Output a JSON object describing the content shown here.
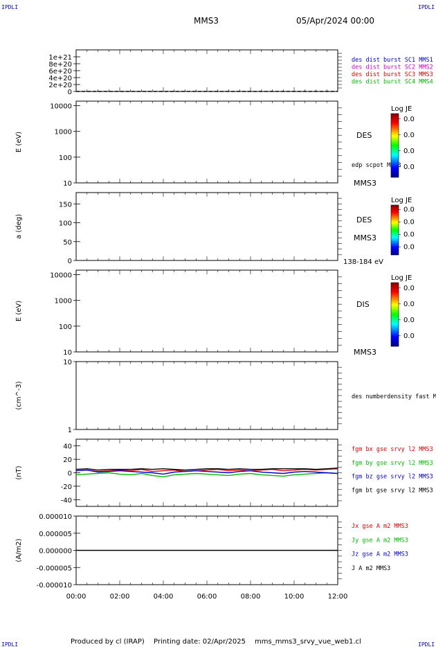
{
  "header": {
    "corner_tl": "IPDLI",
    "corner_tr": "IPDLI",
    "corner_bl": "IPDLI",
    "corner_br": "IPDLI",
    "spacecraft": "MMS3",
    "date": "05/Apr/2024 00:00"
  },
  "footer": {
    "produced_by": "Produced by cl (IRAP)",
    "printing_date": "Printing date: 02/Apr/2025",
    "filename": "mms_mms3_srvy_vue_web1.cl"
  },
  "colors": {
    "blue": "#0000cc",
    "magenta": "#cc00cc",
    "red": "#dd0000",
    "green": "#00bb00",
    "black": "#000000"
  },
  "chart_data": [
    {
      "type": "line",
      "ylabel": "",
      "ylim": [
        0,
        1.2e+21
      ],
      "yticks": [
        "0",
        "2e+20",
        "4e+20",
        "6e+20",
        "8e+20",
        "1e+21"
      ],
      "ytick_values": [
        0,
        2e+20,
        4e+20,
        6e+20,
        8e+20,
        1e+21
      ],
      "legend": [
        {
          "label": "des dist burst SC1 MMS1",
          "color": "#0000cc"
        },
        {
          "label": "des dist burst SC2 MMS2",
          "color": "#cc00cc"
        },
        {
          "label": "des dist burst SC3 MMS3",
          "color": "#dd0000"
        },
        {
          "label": "des dist burst SC4 MMS4",
          "color": "#00bb00"
        }
      ],
      "series": [
        {
          "name": "des dist burst SC3 MMS3",
          "x": [
            "00:00",
            "12:00"
          ],
          "y": [
            0,
            0
          ],
          "dashed": true
        }
      ]
    },
    {
      "type": "heatmap",
      "ylabel": "E (eV)",
      "yscale": "log",
      "ylim": [
        10,
        15000
      ],
      "yticks": [
        "10",
        "100",
        "1000",
        "10000"
      ],
      "ytick_values": [
        10,
        100,
        1000,
        10000
      ],
      "instrument": "DES",
      "extra_label": "edp scpot MMS3",
      "spacecraft_label": "MMS3",
      "colorbar": {
        "title": "Log JE",
        "values": [
          "0.0",
          "0.0",
          "0.0",
          "0.0"
        ]
      }
    },
    {
      "type": "heatmap",
      "ylabel": "a (deg)",
      "ylim": [
        0,
        180
      ],
      "yticks": [
        "0",
        "50",
        "100",
        "150"
      ],
      "ytick_values": [
        0,
        50,
        100,
        150
      ],
      "instrument": "DES",
      "spacecraft_label": "MMS3",
      "energy_label": "138-184 eV",
      "colorbar": {
        "title": "Log JE",
        "values": [
          "0.0",
          "0.0",
          "0.0",
          "0.0"
        ]
      }
    },
    {
      "type": "heatmap",
      "ylabel": "E (eV)",
      "yscale": "log",
      "ylim": [
        10,
        15000
      ],
      "yticks": [
        "10",
        "100",
        "1000",
        "10000"
      ],
      "ytick_values": [
        10,
        100,
        1000,
        10000
      ],
      "instrument": "DIS",
      "spacecraft_label": "MMS3",
      "colorbar": {
        "title": "Log JE",
        "values": [
          "0.0",
          "0.0",
          "0.0",
          "0.0"
        ]
      }
    },
    {
      "type": "line",
      "ylabel": "(cm^-3)",
      "yscale": "log",
      "ylim": [
        1,
        10
      ],
      "yticks": [
        "1",
        "10"
      ],
      "ytick_values": [
        1,
        10
      ],
      "legend": [
        {
          "label": "des numberdensity fast M",
          "color": "#000000"
        }
      ],
      "series": []
    },
    {
      "type": "line",
      "ylabel": "(nT)",
      "ylim": [
        -50,
        50
      ],
      "yticks": [
        "-40",
        "-20",
        "0",
        "20",
        "40"
      ],
      "ytick_values": [
        -40,
        -20,
        0,
        20,
        40
      ],
      "legend": [
        {
          "label": "fgm bx gse srvy l2 MMS3",
          "color": "#dd0000"
        },
        {
          "label": "fgm by gse srvy l2 MMS3",
          "color": "#00bb00"
        },
        {
          "label": "fgm bz gse srvy l2 MMS3",
          "color": "#0000cc"
        },
        {
          "label": "fgm bt gse srvy l2 MMS3",
          "color": "#000000"
        }
      ],
      "x": [
        "00:00",
        "00:30",
        "01:00",
        "01:30",
        "02:00",
        "02:30",
        "03:00",
        "03:30",
        "04:00",
        "04:30",
        "05:00",
        "05:30",
        "06:00",
        "06:30",
        "07:00",
        "07:30",
        "08:00",
        "08:30",
        "09:00",
        "09:30",
        "10:00",
        "10:30",
        "11:00",
        "11:30",
        "12:00"
      ],
      "series": [
        {
          "name": "fgm bx gse srvy l2 MMS3",
          "color": "#dd0000",
          "values": [
            3,
            4,
            2,
            3,
            4,
            3,
            5,
            2,
            3,
            4,
            2,
            3,
            4,
            5,
            3,
            4,
            3,
            4,
            5,
            3,
            4,
            5,
            4,
            5,
            6
          ]
        },
        {
          "name": "fgm by gse srvy l2 MMS3",
          "color": "#00bb00",
          "values": [
            -3,
            -2,
            -1,
            0,
            -2,
            -3,
            -1,
            -4,
            -6,
            -3,
            -2,
            -1,
            -2,
            -3,
            -4,
            -2,
            -1,
            -3,
            -4,
            -5,
            -3,
            -2,
            -1,
            0,
            -1
          ]
        },
        {
          "name": "fgm bz gse srvy l2 MMS3",
          "color": "#0000cc",
          "values": [
            3,
            4,
            1,
            2,
            3,
            2,
            1,
            0,
            -2,
            1,
            2,
            3,
            2,
            1,
            0,
            2,
            3,
            1,
            0,
            -1,
            1,
            2,
            1,
            0,
            -1
          ]
        },
        {
          "name": "fgm bt gse srvy l2 MMS3",
          "color": "#000000",
          "values": [
            5,
            6,
            4,
            5,
            5,
            5,
            6,
            5,
            6,
            5,
            4,
            5,
            6,
            6,
            5,
            6,
            5,
            5,
            6,
            6,
            6,
            6,
            5,
            6,
            7
          ]
        }
      ]
    },
    {
      "type": "line",
      "ylabel": "(A/m2)",
      "ylim": [
        -1e-05,
        1e-05
      ],
      "yticks": [
        "-0.000010",
        "-0.000005",
        "0.000000",
        "0.000005",
        "0.000010"
      ],
      "ytick_values": [
        -1e-05,
        -5e-06,
        0,
        5e-06,
        1e-05
      ],
      "legend": [
        {
          "label": "Jx gse A m2 MMS3",
          "color": "#dd0000"
        },
        {
          "label": "Jy gse A m2 MMS3",
          "color": "#00bb00"
        },
        {
          "label": "Jz gse A m2 MMS3",
          "color": "#0000cc"
        },
        {
          "label": "J A m2 MMS3",
          "color": "#000000"
        }
      ],
      "x": [
        "00:00",
        "12:00"
      ],
      "series": [
        {
          "name": "J A m2 MMS3",
          "color": "#000000",
          "values": [
            0,
            0
          ]
        }
      ]
    }
  ],
  "xaxis": {
    "ticks": [
      "00:00",
      "02:00",
      "04:00",
      "06:00",
      "08:00",
      "10:00",
      "12:00"
    ]
  }
}
